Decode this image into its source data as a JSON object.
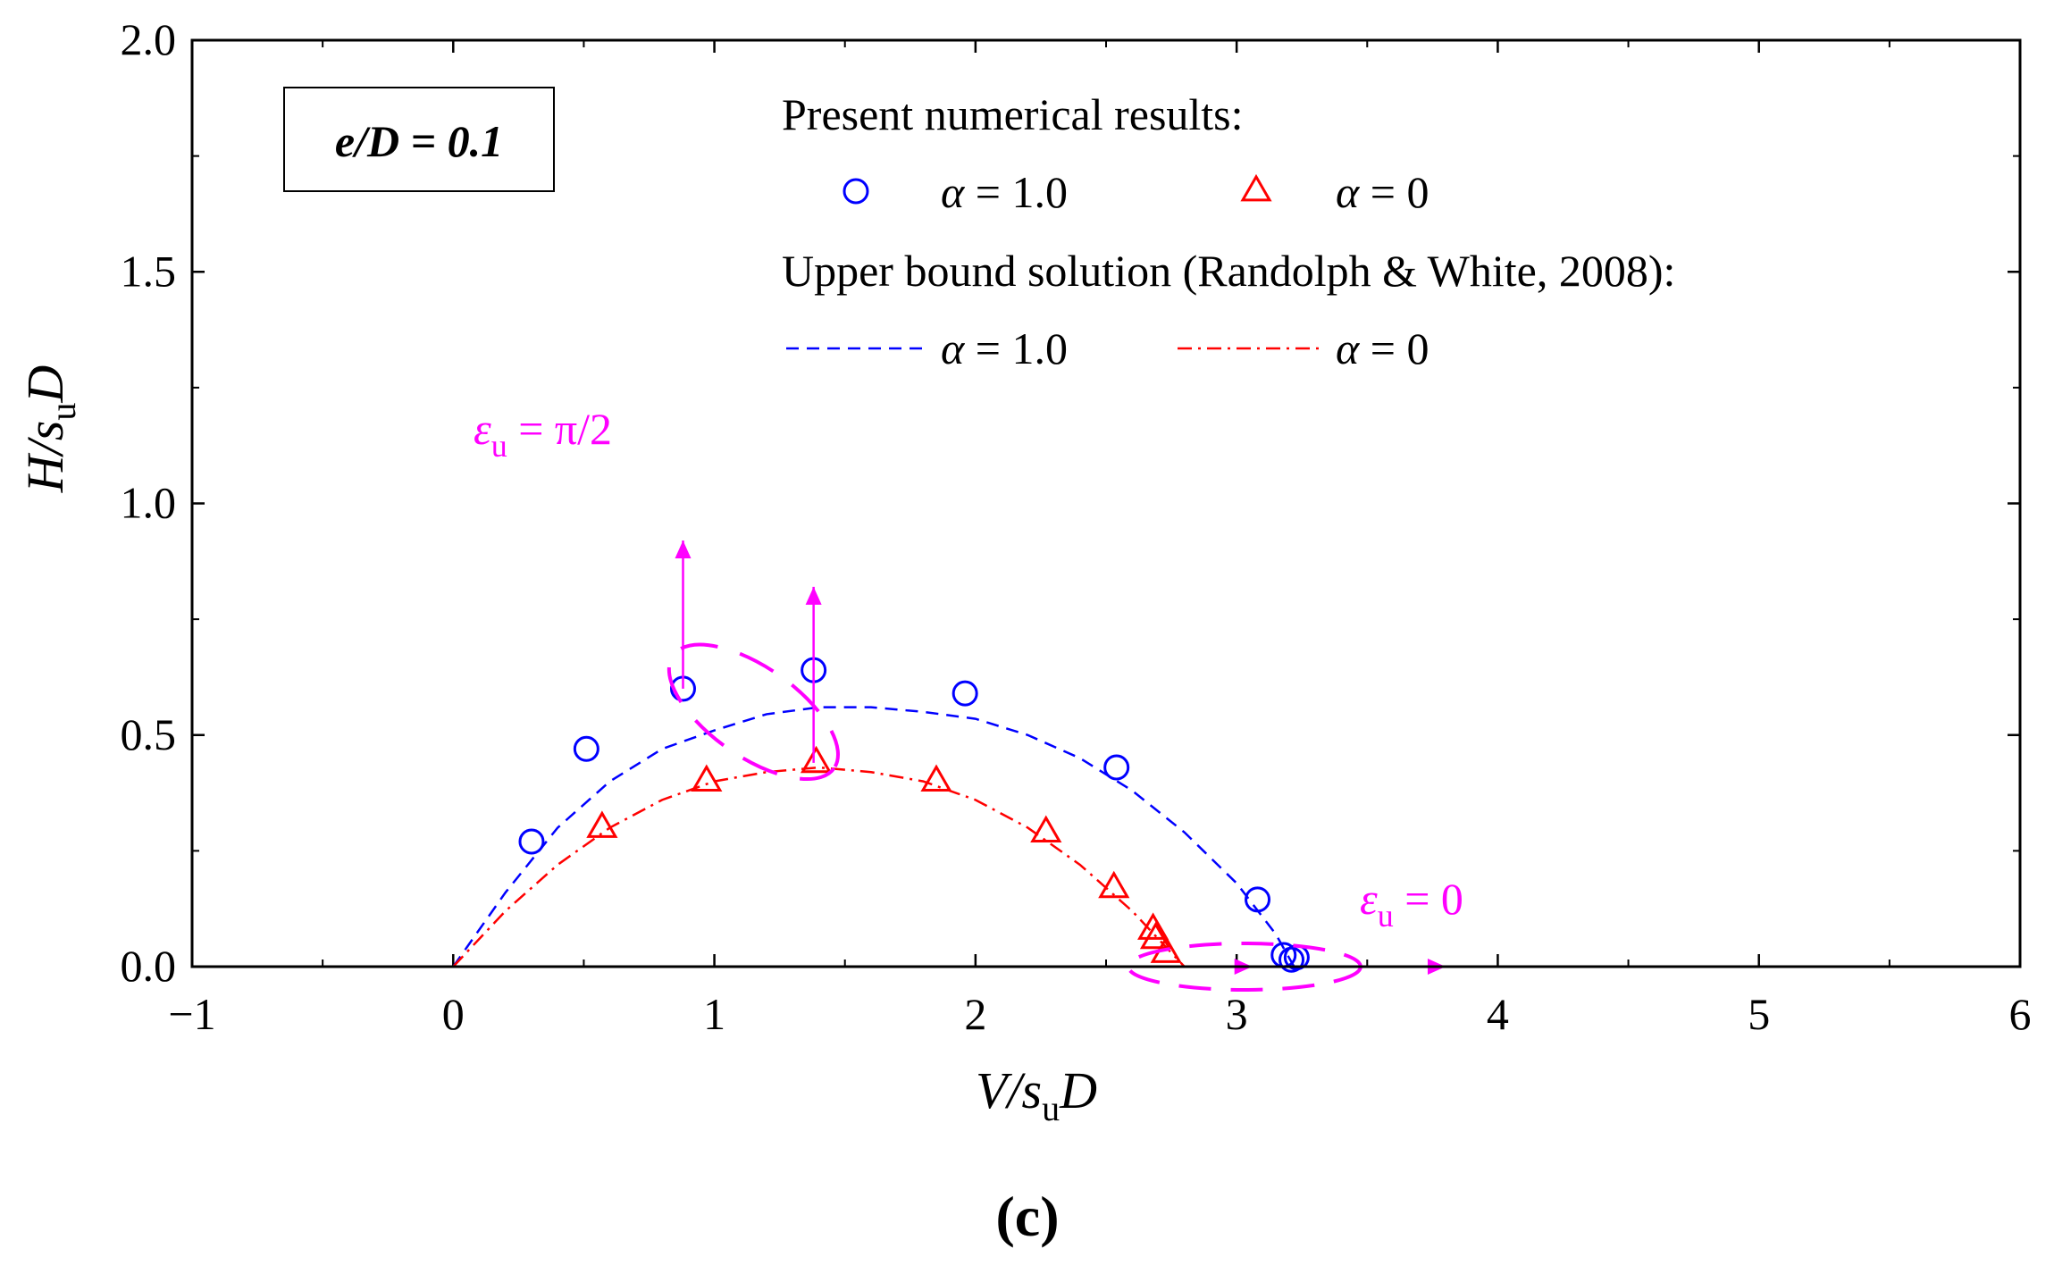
{
  "chart_data": {
    "type": "scatter",
    "title": "",
    "xlabel": "V/s_uD",
    "ylabel": "H/s_uD",
    "xlim": [
      -1,
      6
    ],
    "ylim": [
      0,
      2.0
    ],
    "xticks": [
      -1,
      0,
      1,
      2,
      3,
      4,
      5,
      6
    ],
    "xtick_labels": [
      "−1",
      "0",
      "1",
      "2",
      "3",
      "4",
      "5",
      "6"
    ],
    "yticks": [
      0,
      0.5,
      1.0,
      1.5,
      2.0
    ],
    "ytick_labels": [
      "0.0",
      "0.5",
      "1.0",
      "1.5",
      "2.0"
    ],
    "annotation_box": "e/D = 0.1",
    "legend_heading_1": "Present numerical results:",
    "legend_heading_2": "Upper bound solution (Randolph & White, 2008):",
    "series": [
      {
        "name": "Present numerical results, α = 1.0",
        "label": "α = 1.0",
        "marker": "circle",
        "color": "#0000ff",
        "points": [
          [
            0.3,
            0.27
          ],
          [
            0.51,
            0.47
          ],
          [
            0.88,
            0.6
          ],
          [
            1.38,
            0.64
          ],
          [
            1.96,
            0.59
          ],
          [
            2.54,
            0.43
          ],
          [
            3.08,
            0.145
          ],
          [
            3.18,
            0.025
          ],
          [
            3.21,
            0.015
          ],
          [
            3.23,
            0.02
          ]
        ]
      },
      {
        "name": "Present numerical results, α = 0",
        "label": "α = 0",
        "marker": "triangle",
        "color": "#ff0000",
        "points": [
          [
            0.57,
            0.3
          ],
          [
            0.97,
            0.4
          ],
          [
            1.39,
            0.44
          ],
          [
            1.85,
            0.4
          ],
          [
            2.27,
            0.29
          ],
          [
            2.53,
            0.17
          ],
          [
            2.68,
            0.08
          ],
          [
            2.69,
            0.06
          ],
          [
            2.73,
            0.03
          ]
        ]
      },
      {
        "name": "Upper bound solution, α = 1.0",
        "label": "α = 1.0",
        "style": "dashed",
        "color": "#0000ff",
        "points": [
          [
            0.0,
            0.0
          ],
          [
            0.2,
            0.16
          ],
          [
            0.4,
            0.3
          ],
          [
            0.6,
            0.4
          ],
          [
            0.8,
            0.47
          ],
          [
            1.0,
            0.51
          ],
          [
            1.2,
            0.545
          ],
          [
            1.4,
            0.56
          ],
          [
            1.6,
            0.56
          ],
          [
            1.8,
            0.55
          ],
          [
            2.0,
            0.535
          ],
          [
            2.2,
            0.5
          ],
          [
            2.4,
            0.45
          ],
          [
            2.6,
            0.38
          ],
          [
            2.8,
            0.29
          ],
          [
            3.0,
            0.18
          ],
          [
            3.15,
            0.07
          ],
          [
            3.22,
            0.0
          ]
        ]
      },
      {
        "name": "Upper bound solution, α = 0",
        "label": "α = 0",
        "style": "dashdot",
        "color": "#ff0000",
        "points": [
          [
            0.0,
            0.0
          ],
          [
            0.2,
            0.12
          ],
          [
            0.4,
            0.22
          ],
          [
            0.6,
            0.3
          ],
          [
            0.8,
            0.36
          ],
          [
            1.0,
            0.4
          ],
          [
            1.2,
            0.42
          ],
          [
            1.4,
            0.43
          ],
          [
            1.6,
            0.42
          ],
          [
            1.8,
            0.4
          ],
          [
            2.0,
            0.36
          ],
          [
            2.2,
            0.3
          ],
          [
            2.4,
            0.22
          ],
          [
            2.6,
            0.12
          ],
          [
            2.75,
            0.03
          ],
          [
            2.8,
            0.0
          ]
        ]
      }
    ],
    "annotations": [
      {
        "text_main": "ε",
        "text_sub": "u",
        "text_rest": " = π/2",
        "color": "#ff00ff"
      },
      {
        "text_main": "ε",
        "text_sub": "u",
        "text_rest": " = 0",
        "color": "#ff00ff"
      }
    ],
    "arrows": [
      {
        "from": [
          0.88,
          0.6
        ],
        "to": [
          0.88,
          0.92
        ],
        "color": "#ff00ff"
      },
      {
        "from": [
          1.38,
          0.44
        ],
        "to": [
          1.38,
          0.82
        ],
        "color": "#ff00ff"
      },
      {
        "from": [
          2.73,
          0.0
        ],
        "to": [
          3.06,
          0.0
        ],
        "color": "#ff00ff"
      },
      {
        "from": [
          3.24,
          0.0
        ],
        "to": [
          3.8,
          0.0
        ],
        "color": "#ff00ff"
      }
    ]
  },
  "caption": "(c)"
}
